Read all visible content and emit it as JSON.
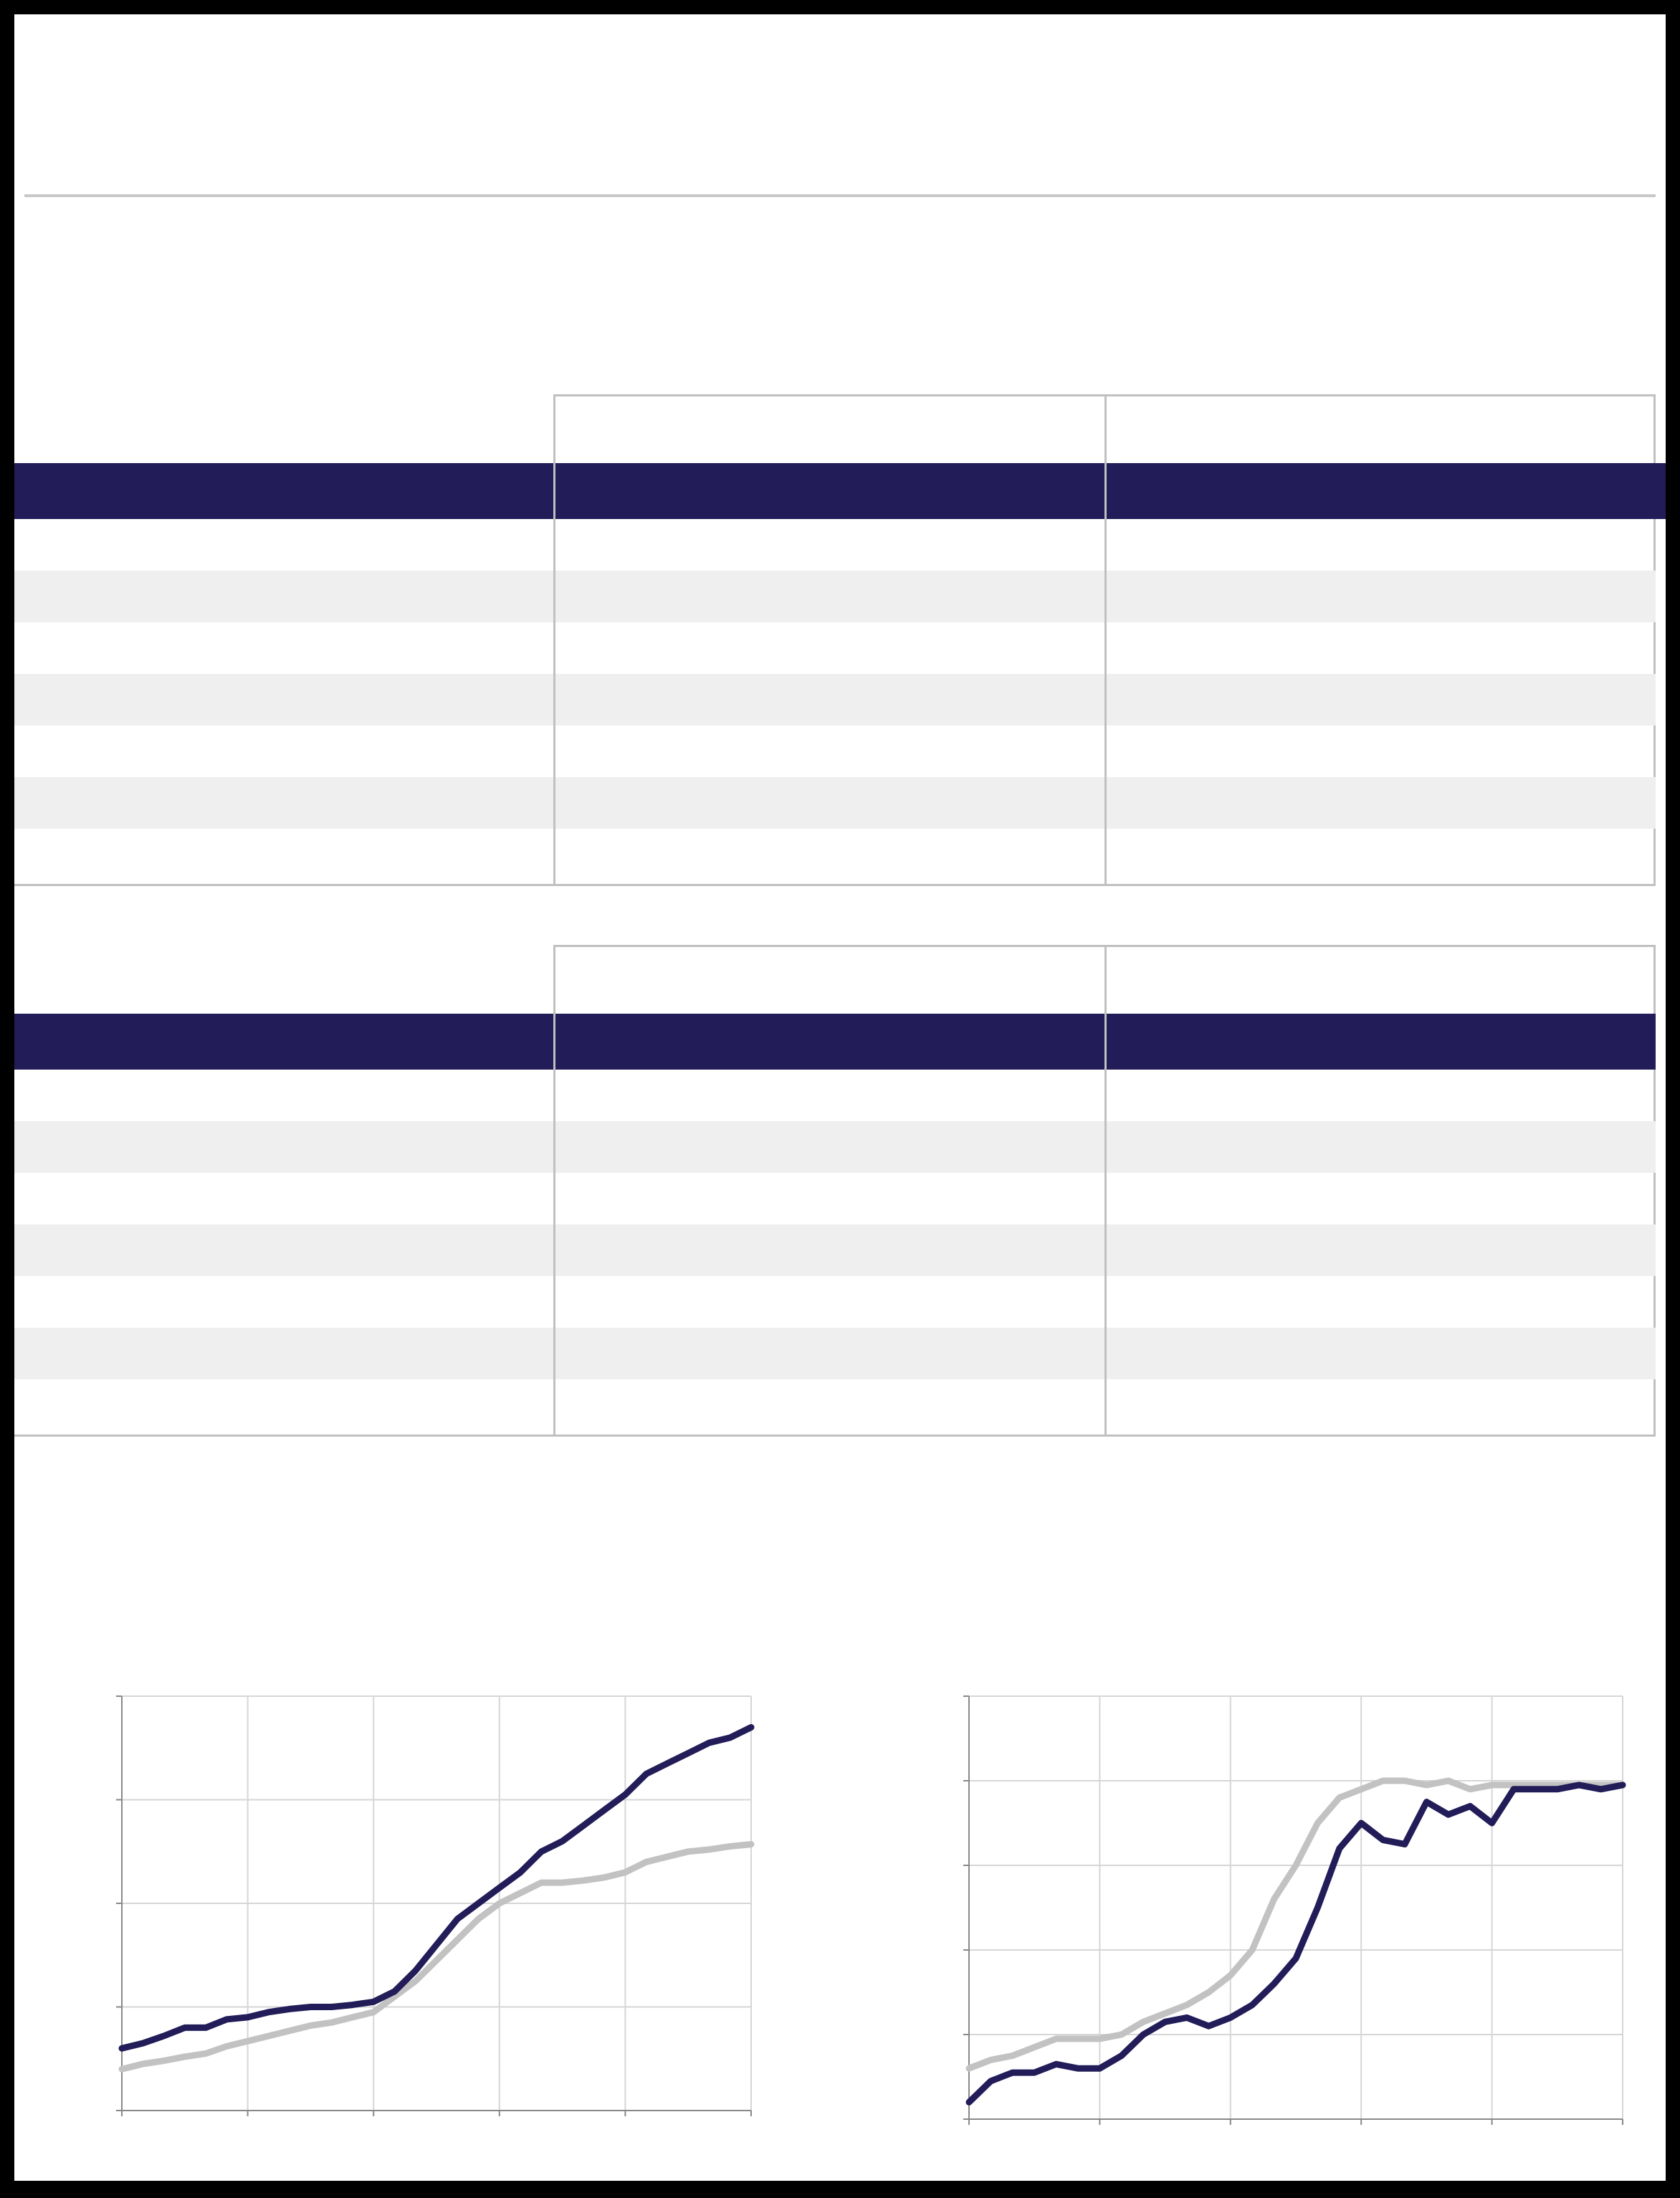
{
  "colors": {
    "navy": "#221c58",
    "gray_line": "#c2c2c2",
    "row_alt": "#efefef",
    "border": "#c0c0c0"
  },
  "tables": [
    {
      "rows": [
        [
          "",
          "",
          ""
        ],
        [
          "",
          "",
          ""
        ],
        [
          "",
          "",
          ""
        ],
        [
          "",
          "",
          ""
        ],
        [
          "",
          "",
          ""
        ],
        [
          "",
          "",
          ""
        ],
        [
          "",
          "",
          ""
        ]
      ]
    },
    {
      "rows": [
        [
          "",
          "",
          ""
        ],
        [
          "",
          "",
          ""
        ],
        [
          "",
          "",
          ""
        ],
        [
          "",
          "",
          ""
        ],
        [
          "",
          "",
          ""
        ],
        [
          "",
          "",
          ""
        ],
        [
          "",
          "",
          ""
        ]
      ]
    }
  ],
  "chart_data": [
    {
      "type": "line",
      "ylim": [
        0,
        4
      ],
      "xlim": [
        0,
        5
      ],
      "grid": true,
      "series": [
        {
          "color": "#221c58",
          "values": [
            0.6,
            0.65,
            0.72,
            0.8,
            0.8,
            0.88,
            0.9,
            0.95,
            0.98,
            1.0,
            1.0,
            1.02,
            1.05,
            1.15,
            1.35,
            1.6,
            1.85,
            2.0,
            2.15,
            2.3,
            2.5,
            2.6,
            2.75,
            2.9,
            3.05,
            3.25,
            3.35,
            3.45,
            3.55,
            3.6,
            3.7
          ]
        },
        {
          "color": "#c2c2c2",
          "values": [
            0.4,
            0.45,
            0.48,
            0.52,
            0.55,
            0.62,
            0.67,
            0.72,
            0.77,
            0.82,
            0.85,
            0.9,
            0.95,
            1.1,
            1.25,
            1.45,
            1.65,
            1.85,
            2.0,
            2.1,
            2.2,
            2.2,
            2.22,
            2.25,
            2.3,
            2.4,
            2.45,
            2.5,
            2.52,
            2.55,
            2.57
          ]
        }
      ]
    },
    {
      "type": "line",
      "ylim": [
        0,
        5
      ],
      "xlim": [
        0,
        5
      ],
      "grid": true,
      "series": [
        {
          "color": "#221c58",
          "values": [
            0.2,
            0.45,
            0.55,
            0.55,
            0.65,
            0.6,
            0.6,
            0.75,
            1.0,
            1.15,
            1.2,
            1.1,
            1.2,
            1.35,
            1.6,
            1.9,
            2.5,
            3.2,
            3.5,
            3.3,
            3.25,
            3.75,
            3.6,
            3.7,
            3.5,
            3.9,
            3.9,
            3.9,
            3.95,
            3.9,
            3.95
          ]
        },
        {
          "color": "#c2c2c2",
          "values": [
            0.6,
            0.7,
            0.75,
            0.85,
            0.95,
            0.95,
            0.95,
            1.0,
            1.15,
            1.25,
            1.35,
            1.5,
            1.7,
            2.0,
            2.6,
            3.0,
            3.5,
            3.8,
            3.9,
            4.0,
            4.0,
            3.95,
            4.0,
            3.9,
            3.95,
            3.95,
            3.95,
            3.95,
            3.95,
            3.95,
            3.95
          ]
        }
      ]
    }
  ]
}
